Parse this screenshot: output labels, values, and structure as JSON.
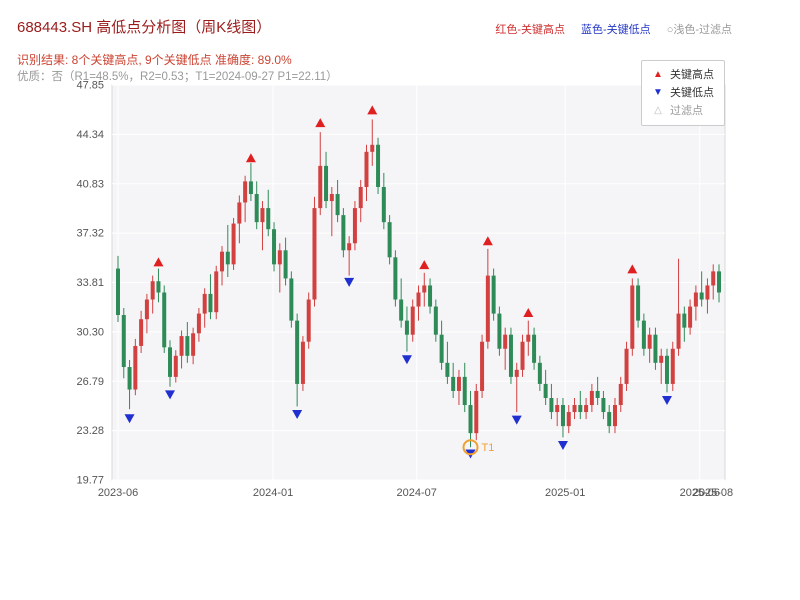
{
  "header": {
    "title": "688443.SH 高低点分析图（周K线图）",
    "legend_top": {
      "high_label": "红色-关键高点",
      "low_label": "蓝色-关键低点",
      "filter_label": "○浅色-过滤点"
    },
    "result_line": "识别结果: 8个关键高点, 9个关键低点  准确度: 89.0%",
    "quality_line": "优质：否（R1=48.5%，R2=0.53；T1=2024-09-27 P1=22.11）"
  },
  "legend": {
    "items": [
      {
        "label": "关键高点",
        "icon": "▲"
      },
      {
        "label": "关键低点",
        "icon": "▼"
      },
      {
        "label": "过滤点",
        "icon": "△"
      }
    ]
  },
  "chart_data": {
    "type": "candlestick",
    "symbol": "688443.SH",
    "timeframe": "weekly",
    "title": "688443.SH 高低点分析图（周K线图）",
    "ylim": [
      19.77,
      47.85
    ],
    "yticks": [
      19.77,
      23.28,
      26.79,
      30.3,
      33.81,
      37.32,
      40.83,
      44.34,
      47.85
    ],
    "xticks": [
      {
        "pos": 0.0,
        "label": "2023-06",
        "grid": true
      },
      {
        "pos": 0.258,
        "label": "2024-01",
        "grid": true
      },
      {
        "pos": 0.497,
        "label": "2024-07",
        "grid": true
      },
      {
        "pos": 0.744,
        "label": "2025-01",
        "grid": true
      },
      {
        "pos": 0.968,
        "label": "2025-06",
        "grid": true
      },
      {
        "pos": 0.99,
        "label": "2025-08",
        "grid": false
      }
    ],
    "colors": {
      "up": "#d24040",
      "down": "#2e8b57",
      "key_high": "#e02020",
      "key_low": "#2030d0",
      "filter": "#bbbbbb",
      "t1": "#f0a030",
      "plot_bg": "#f5f5f7",
      "grid": "#ffffff",
      "border": "#d9d9d9",
      "tick_text": "#555555"
    },
    "candles": [
      [
        34.8,
        35.7,
        31.0,
        31.5
      ],
      [
        31.5,
        32.0,
        27.0,
        27.8
      ],
      [
        27.8,
        28.3,
        24.8,
        26.2
      ],
      [
        26.2,
        29.8,
        25.8,
        29.3
      ],
      [
        29.3,
        31.8,
        28.8,
        31.2
      ],
      [
        31.2,
        33.0,
        30.2,
        32.6
      ],
      [
        32.6,
        34.3,
        31.6,
        33.9
      ],
      [
        33.9,
        34.8,
        32.4,
        33.1
      ],
      [
        33.1,
        33.6,
        28.8,
        29.2
      ],
      [
        29.2,
        29.7,
        26.4,
        27.1
      ],
      [
        27.1,
        29.0,
        26.7,
        28.6
      ],
      [
        28.6,
        30.4,
        27.7,
        30.0
      ],
      [
        30.0,
        31.0,
        28.1,
        28.6
      ],
      [
        28.6,
        30.6,
        28.0,
        30.2
      ],
      [
        30.2,
        32.0,
        29.6,
        31.6
      ],
      [
        31.6,
        33.4,
        30.6,
        33.0
      ],
      [
        33.0,
        34.4,
        31.2,
        31.7
      ],
      [
        31.7,
        35.0,
        31.2,
        34.6
      ],
      [
        34.6,
        36.4,
        33.6,
        36.0
      ],
      [
        36.0,
        37.9,
        34.2,
        35.1
      ],
      [
        35.1,
        38.4,
        34.7,
        38.0
      ],
      [
        38.0,
        40.0,
        36.6,
        39.5
      ],
      [
        39.5,
        41.4,
        38.1,
        41.0
      ],
      [
        41.0,
        42.3,
        39.6,
        40.1
      ],
      [
        40.1,
        41.0,
        37.6,
        38.1
      ],
      [
        38.1,
        39.6,
        36.1,
        39.1
      ],
      [
        39.1,
        40.4,
        37.1,
        37.6
      ],
      [
        37.6,
        38.1,
        34.6,
        35.1
      ],
      [
        35.1,
        36.6,
        33.1,
        36.1
      ],
      [
        36.1,
        37.0,
        33.6,
        34.1
      ],
      [
        34.1,
        34.6,
        30.6,
        31.1
      ],
      [
        31.1,
        31.6,
        25.0,
        26.6
      ],
      [
        26.6,
        30.0,
        26.1,
        29.6
      ],
      [
        29.6,
        33.1,
        29.1,
        32.6
      ],
      [
        32.6,
        39.9,
        32.1,
        39.1
      ],
      [
        39.1,
        44.5,
        38.6,
        42.1
      ],
      [
        42.1,
        43.1,
        39.1,
        39.6
      ],
      [
        39.6,
        40.6,
        37.1,
        40.1
      ],
      [
        40.1,
        41.1,
        38.1,
        38.6
      ],
      [
        38.6,
        39.1,
        35.6,
        36.1
      ],
      [
        36.1,
        37.1,
        34.3,
        36.6
      ],
      [
        36.6,
        39.6,
        36.1,
        39.1
      ],
      [
        39.1,
        41.1,
        38.1,
        40.6
      ],
      [
        40.6,
        43.6,
        39.6,
        43.1
      ],
      [
        43.1,
        45.4,
        42.1,
        43.6
      ],
      [
        43.6,
        44.1,
        40.1,
        40.6
      ],
      [
        40.6,
        41.6,
        37.6,
        38.1
      ],
      [
        38.1,
        38.6,
        35.1,
        35.6
      ],
      [
        35.6,
        36.1,
        32.1,
        32.6
      ],
      [
        32.6,
        34.1,
        30.6,
        31.1
      ],
      [
        31.1,
        32.1,
        28.9,
        30.1
      ],
      [
        30.1,
        32.6,
        29.6,
        32.1
      ],
      [
        32.1,
        33.6,
        31.1,
        33.1
      ],
      [
        33.1,
        34.5,
        32.1,
        33.6
      ],
      [
        33.6,
        34.1,
        31.6,
        32.1
      ],
      [
        32.1,
        32.6,
        29.6,
        30.1
      ],
      [
        30.1,
        31.1,
        27.6,
        28.1
      ],
      [
        28.1,
        29.6,
        26.6,
        27.1
      ],
      [
        27.1,
        28.1,
        25.6,
        26.1
      ],
      [
        26.1,
        27.6,
        25.1,
        27.1
      ],
      [
        27.1,
        28.1,
        24.6,
        25.1
      ],
      [
        25.1,
        26.1,
        22.1,
        23.1
      ],
      [
        23.1,
        26.6,
        22.6,
        26.1
      ],
      [
        26.1,
        30.1,
        25.6,
        29.6
      ],
      [
        29.6,
        36.2,
        29.1,
        34.3
      ],
      [
        34.3,
        34.8,
        31.1,
        31.6
      ],
      [
        31.6,
        32.1,
        28.6,
        29.1
      ],
      [
        29.1,
        30.6,
        27.6,
        30.1
      ],
      [
        30.1,
        30.6,
        26.6,
        27.1
      ],
      [
        27.1,
        28.1,
        24.6,
        27.6
      ],
      [
        27.6,
        30.1,
        27.1,
        29.6
      ],
      [
        29.6,
        31.1,
        28.6,
        30.1
      ],
      [
        30.1,
        30.6,
        27.6,
        28.1
      ],
      [
        28.1,
        28.6,
        26.1,
        26.6
      ],
      [
        26.6,
        27.6,
        25.1,
        25.6
      ],
      [
        25.6,
        26.6,
        24.1,
        24.6
      ],
      [
        24.6,
        25.6,
        23.6,
        25.1
      ],
      [
        25.1,
        25.6,
        22.8,
        23.6
      ],
      [
        23.6,
        25.1,
        23.1,
        24.6
      ],
      [
        24.6,
        25.6,
        24.1,
        25.1
      ],
      [
        25.1,
        26.1,
        24.1,
        24.6
      ],
      [
        24.6,
        25.6,
        24.1,
        25.1
      ],
      [
        25.1,
        26.6,
        24.6,
        26.1
      ],
      [
        26.1,
        27.1,
        25.1,
        25.6
      ],
      [
        25.6,
        26.1,
        24.1,
        24.6
      ],
      [
        24.6,
        25.1,
        23.1,
        23.6
      ],
      [
        23.6,
        25.6,
        23.1,
        25.1
      ],
      [
        25.1,
        27.1,
        24.6,
        26.6
      ],
      [
        26.6,
        29.6,
        26.1,
        29.1
      ],
      [
        29.1,
        34.1,
        28.6,
        33.6
      ],
      [
        33.6,
        34.1,
        30.6,
        31.1
      ],
      [
        31.1,
        31.6,
        28.6,
        29.1
      ],
      [
        29.1,
        30.6,
        28.1,
        30.1
      ],
      [
        30.1,
        30.6,
        27.6,
        28.1
      ],
      [
        28.1,
        29.1,
        26.6,
        28.6
      ],
      [
        28.6,
        29.1,
        26.0,
        26.6
      ],
      [
        26.6,
        29.6,
        26.1,
        29.1
      ],
      [
        29.1,
        35.5,
        28.6,
        31.6
      ],
      [
        31.6,
        32.1,
        29.6,
        30.6
      ],
      [
        30.6,
        32.6,
        30.1,
        32.1
      ],
      [
        32.1,
        33.6,
        31.1,
        33.1
      ],
      [
        33.1,
        34.6,
        32.1,
        32.6
      ],
      [
        32.6,
        34.1,
        31.6,
        33.6
      ],
      [
        33.6,
        35.1,
        32.6,
        34.6
      ],
      [
        34.6,
        35.1,
        32.4,
        33.1
      ]
    ],
    "key_highs": [
      {
        "index": 7,
        "price": 35.1
      },
      {
        "index": 23,
        "price": 42.5
      },
      {
        "index": 35,
        "price": 45.0
      },
      {
        "index": 44,
        "price": 45.9
      },
      {
        "index": 53,
        "price": 34.9
      },
      {
        "index": 64,
        "price": 36.6
      },
      {
        "index": 71,
        "price": 31.5
      },
      {
        "index": 89,
        "price": 34.6
      }
    ],
    "key_lows": [
      {
        "index": 2,
        "price": 24.3
      },
      {
        "index": 9,
        "price": 26.0
      },
      {
        "index": 31,
        "price": 24.6
      },
      {
        "index": 40,
        "price": 34.0
      },
      {
        "index": 50,
        "price": 28.5
      },
      {
        "index": 61,
        "price": 21.8
      },
      {
        "index": 69,
        "price": 24.2
      },
      {
        "index": 77,
        "price": 22.4
      },
      {
        "index": 95,
        "price": 25.6
      }
    ],
    "t1_marker": {
      "index": 61,
      "price": 22.1,
      "label": "T1"
    }
  }
}
